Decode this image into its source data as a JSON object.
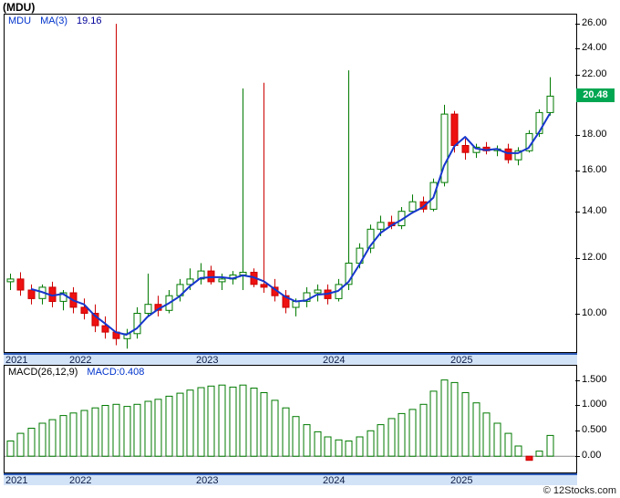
{
  "header": {
    "title": "(MDU)"
  },
  "watermark": "© 12Stocks.com",
  "colors": {
    "up_candle": "#007a00",
    "down_candle": "#cc0000",
    "down_candle_fill": "#ee1111",
    "ma_line": "#1636cc",
    "badge_bg": "#00a651",
    "badge_text": "#ffffff",
    "band_bg": "#d3e3f7",
    "band_line": "#2e5cb8",
    "legend_blue": "#0033cc",
    "legend_value_navy": "#000099",
    "macd_bar_pos": "#007a00",
    "macd_bar_neg": "#ee1111",
    "zero_line": "#888888"
  },
  "main_chart": {
    "legend_symbol": "MDU",
    "legend_ma": "MA(3)",
    "legend_value": "19.16",
    "last_price_label": "20.48"
  },
  "macd_chart": {
    "label": "MACD(26,12,9)",
    "value_label": "MACD:0.408"
  },
  "x_axis": {
    "years": [
      "2021",
      "2022",
      "2023",
      "2024",
      "2025"
    ]
  },
  "chart_data": [
    {
      "type": "candlestick",
      "title": "(MDU)",
      "series_name": "MDU",
      "overlay": {
        "name": "MA(3)",
        "last": 19.16
      },
      "last_price": 20.48,
      "y_scale": "log",
      "y_range": [
        8.8,
        26.8
      ],
      "y_ticks": [
        26,
        24,
        22,
        18,
        16,
        14,
        12,
        10
      ],
      "x_labels": [
        "2021",
        "2022",
        "2023",
        "2024",
        "2025"
      ],
      "year_start_index": {
        "2021": 0,
        "2022": 6,
        "2023": 18,
        "2024": 30,
        "2025": 42
      },
      "total_slots": 54,
      "ohlc_columns": [
        "open",
        "high",
        "low",
        "close"
      ],
      "months": [
        "2021-07",
        "2021-08",
        "2021-09",
        "2021-10",
        "2021-11",
        "2021-12",
        "2022-01",
        "2022-02",
        "2022-03",
        "2022-04",
        "2022-05",
        "2022-06",
        "2022-07",
        "2022-08",
        "2022-09",
        "2022-10",
        "2022-11",
        "2022-12",
        "2023-01",
        "2023-02",
        "2023-03",
        "2023-04",
        "2023-05",
        "2023-06",
        "2023-07",
        "2023-08",
        "2023-09",
        "2023-10",
        "2023-11",
        "2023-12",
        "2024-01",
        "2024-02",
        "2024-03",
        "2024-04",
        "2024-05",
        "2024-06",
        "2024-07",
        "2024-08",
        "2024-09",
        "2024-10",
        "2024-11",
        "2024-12",
        "2025-01",
        "2025-02",
        "2025-03",
        "2025-04",
        "2025-05",
        "2025-06",
        "2025-07",
        "2025-08",
        "2025-09",
        "2025-10"
      ],
      "ohlc": [
        [
          11.1,
          11.4,
          10.8,
          11.2
        ],
        [
          11.2,
          11.45,
          10.6,
          10.8
        ],
        [
          10.8,
          11.0,
          10.3,
          10.5
        ],
        [
          10.5,
          11.0,
          10.3,
          10.9
        ],
        [
          10.9,
          11.1,
          10.2,
          10.4
        ],
        [
          10.4,
          10.8,
          10.1,
          10.7
        ],
        [
          10.7,
          10.9,
          10.0,
          10.2
        ],
        [
          10.2,
          10.5,
          9.8,
          10.0
        ],
        [
          10.0,
          10.3,
          9.4,
          9.6
        ],
        [
          9.6,
          9.9,
          9.2,
          9.4
        ],
        [
          9.4,
          26.0,
          9.0,
          9.2
        ],
        [
          9.2,
          9.5,
          8.9,
          9.35
        ],
        [
          9.35,
          10.2,
          9.2,
          10.0
        ],
        [
          10.0,
          11.4,
          9.9,
          10.3
        ],
        [
          10.3,
          10.6,
          9.9,
          10.1
        ],
        [
          10.1,
          10.8,
          10.0,
          10.6
        ],
        [
          10.6,
          11.2,
          10.4,
          11.0
        ],
        [
          11.0,
          11.6,
          10.8,
          11.2
        ],
        [
          11.2,
          11.8,
          11.0,
          11.5
        ],
        [
          11.5,
          11.7,
          11.0,
          11.1
        ],
        [
          11.1,
          11.4,
          10.8,
          11.2
        ],
        [
          11.2,
          11.5,
          11.0,
          11.35
        ],
        [
          11.35,
          21.0,
          10.8,
          11.45
        ],
        [
          11.45,
          11.6,
          10.9,
          11.0
        ],
        [
          11.0,
          21.4,
          10.7,
          10.9
        ],
        [
          10.9,
          11.2,
          10.4,
          10.6
        ],
        [
          10.6,
          10.8,
          10.0,
          10.2
        ],
        [
          10.2,
          10.5,
          9.9,
          10.4
        ],
        [
          10.4,
          10.9,
          10.2,
          10.7
        ],
        [
          10.7,
          11.0,
          10.4,
          10.8
        ],
        [
          10.8,
          11.0,
          10.3,
          10.5
        ],
        [
          10.5,
          11.2,
          10.4,
          11.0
        ],
        [
          11.0,
          22.3,
          10.8,
          11.8
        ],
        [
          11.8,
          12.6,
          11.6,
          12.4
        ],
        [
          12.4,
          13.4,
          12.2,
          13.2
        ],
        [
          13.2,
          13.8,
          12.9,
          13.5
        ],
        [
          13.5,
          13.8,
          13.2,
          13.35
        ],
        [
          13.35,
          14.2,
          13.2,
          14.0
        ],
        [
          14.0,
          14.8,
          13.9,
          14.45
        ],
        [
          14.45,
          14.7,
          13.95,
          14.1
        ],
        [
          14.1,
          15.6,
          14.0,
          15.4
        ],
        [
          15.4,
          19.9,
          15.2,
          19.3
        ],
        [
          19.3,
          19.5,
          17.0,
          17.4
        ],
        [
          17.4,
          17.8,
          16.6,
          17.0
        ],
        [
          17.0,
          17.5,
          16.7,
          17.3
        ],
        [
          17.3,
          17.6,
          16.9,
          17.1
        ],
        [
          17.1,
          17.4,
          16.8,
          17.2
        ],
        [
          17.2,
          17.5,
          16.4,
          16.6
        ],
        [
          16.6,
          17.3,
          16.3,
          17.1
        ],
        [
          17.1,
          18.3,
          17.0,
          18.1
        ],
        [
          18.1,
          19.6,
          17.9,
          19.4
        ],
        [
          19.4,
          21.8,
          19.2,
          20.48
        ]
      ]
    },
    {
      "type": "bar",
      "title": "MACD(26,12,9)",
      "last_value": 0.408,
      "y_range": [
        -0.32,
        1.78
      ],
      "y_ticks": [
        {
          "value": 1.5,
          "label": "1.500"
        },
        {
          "value": 1.0,
          "label": "1.000"
        },
        {
          "value": 0.5,
          "label": "0.500"
        },
        {
          "value": 0.0,
          "label": "0.00"
        }
      ],
      "values": [
        0.3,
        0.45,
        0.55,
        0.65,
        0.72,
        0.8,
        0.85,
        0.9,
        0.95,
        1.0,
        1.02,
        0.98,
        1.02,
        1.08,
        1.12,
        1.18,
        1.24,
        1.3,
        1.35,
        1.38,
        1.4,
        1.36,
        1.4,
        1.34,
        1.25,
        1.1,
        0.95,
        0.78,
        0.62,
        0.48,
        0.38,
        0.32,
        0.3,
        0.38,
        0.5,
        0.62,
        0.74,
        0.84,
        0.92,
        1.02,
        1.28,
        1.5,
        1.45,
        1.25,
        1.05,
        0.85,
        0.65,
        0.45,
        0.2,
        -0.08,
        0.1,
        0.408
      ]
    }
  ]
}
